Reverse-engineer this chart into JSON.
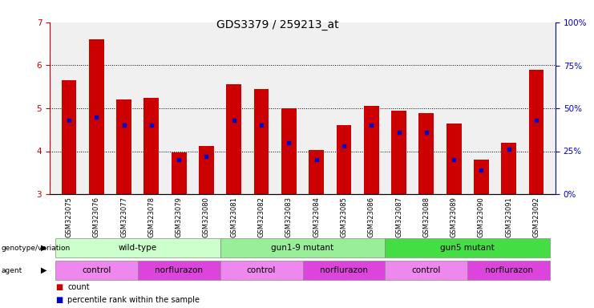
{
  "title": "GDS3379 / 259213_at",
  "samples": [
    "GSM323075",
    "GSM323076",
    "GSM323077",
    "GSM323078",
    "GSM323079",
    "GSM323080",
    "GSM323081",
    "GSM323082",
    "GSM323083",
    "GSM323084",
    "GSM323085",
    "GSM323086",
    "GSM323087",
    "GSM323088",
    "GSM323089",
    "GSM323090",
    "GSM323091",
    "GSM323092"
  ],
  "bar_values": [
    5.65,
    6.6,
    5.2,
    5.25,
    3.97,
    4.12,
    5.57,
    5.45,
    5.0,
    4.03,
    4.6,
    5.05,
    4.95,
    4.88,
    4.65,
    3.8,
    4.2,
    5.9
  ],
  "dot_percentiles": [
    43,
    45,
    40,
    40,
    20,
    22,
    43,
    40,
    30,
    20,
    28,
    40,
    36,
    36,
    20,
    14,
    26,
    43
  ],
  "ylim_left": [
    3,
    7
  ],
  "ylim_right": [
    0,
    100
  ],
  "yticks_left": [
    3,
    4,
    5,
    6,
    7
  ],
  "yticks_right": [
    0,
    25,
    50,
    75,
    100
  ],
  "bar_color": "#cc0000",
  "dot_color": "#0000cc",
  "bar_width": 0.55,
  "genotype_groups": [
    {
      "label": "wild-type",
      "start": 0,
      "end": 5,
      "color": "#ccffcc"
    },
    {
      "label": "gun1-9 mutant",
      "start": 6,
      "end": 11,
      "color": "#99ee99"
    },
    {
      "label": "gun5 mutant",
      "start": 12,
      "end": 17,
      "color": "#44dd44"
    }
  ],
  "agent_groups": [
    {
      "label": "control",
      "start": 0,
      "end": 2,
      "color": "#ee88ee"
    },
    {
      "label": "norflurazon",
      "start": 3,
      "end": 5,
      "color": "#dd44dd"
    },
    {
      "label": "control",
      "start": 6,
      "end": 8,
      "color": "#ee88ee"
    },
    {
      "label": "norflurazon",
      "start": 9,
      "end": 11,
      "color": "#dd44dd"
    },
    {
      "label": "control",
      "start": 12,
      "end": 14,
      "color": "#ee88ee"
    },
    {
      "label": "norflurazon",
      "start": 15,
      "end": 17,
      "color": "#dd44dd"
    }
  ],
  "axis_color_left": "#cc0000",
  "axis_color_right": "#0000cc",
  "title_fontsize": 10,
  "tick_fontsize": 7.5,
  "sample_fontsize": 6,
  "annot_fontsize": 7.5,
  "legend_fontsize": 7
}
